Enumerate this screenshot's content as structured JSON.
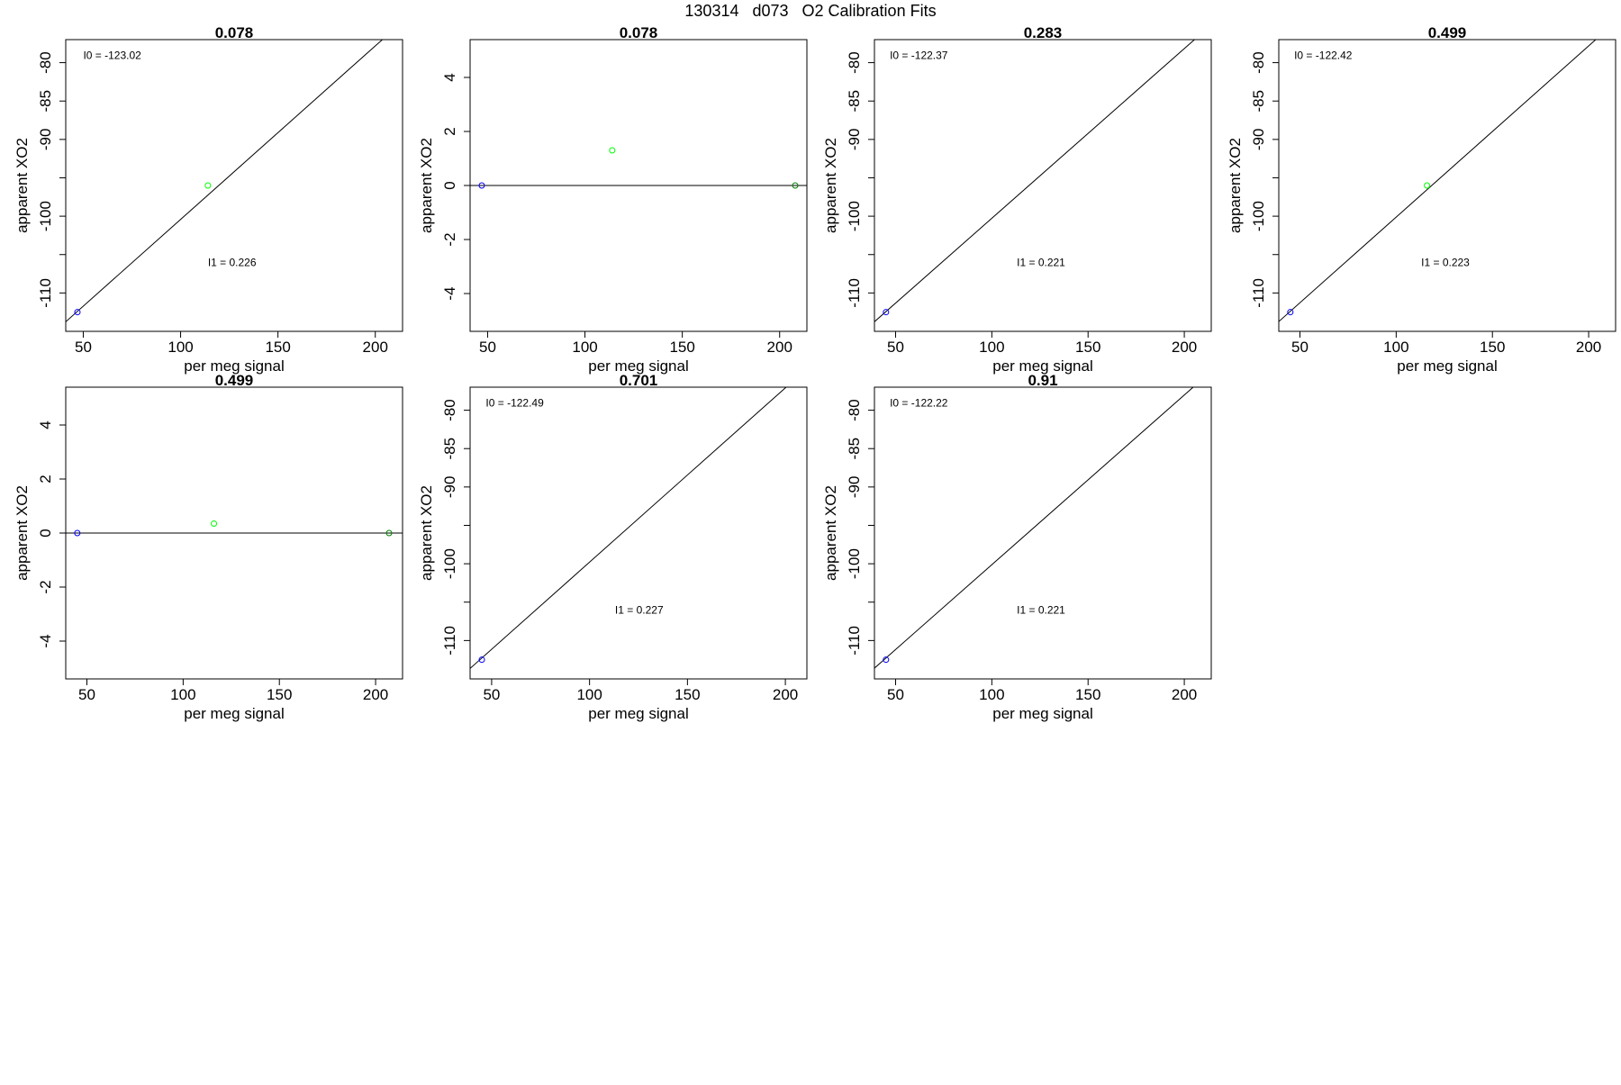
{
  "figure": {
    "title": "130314   d073   O2 Calibration Fits"
  },
  "chart_data": [
    {
      "type": "scatter",
      "title": "0.078",
      "xlabel": "per meg signal",
      "ylabel": "apparent XO2",
      "xlim": [
        41,
        214
      ],
      "ylim": [
        -115,
        -77
      ],
      "xticks": [
        50,
        100,
        150,
        200
      ],
      "yticks": [
        -110,
        -100,
        -90,
        -85,
        -80
      ],
      "ygrid_marks": [
        -110,
        -105,
        -100,
        -95,
        -90,
        -85,
        -80
      ],
      "points": [
        {
          "x": 47,
          "y": -112.5,
          "color": "#0000ff"
        },
        {
          "x": 114,
          "y": -96.0,
          "color": "#00ff00"
        },
        {
          "x": 208,
          "y": -76.5,
          "color": "#008000"
        }
      ],
      "fit_line": {
        "slope": 0.226,
        "intercept": -123.02
      },
      "annotations": [
        {
          "label": "I0 =",
          "value": "-123.02",
          "x": 50,
          "y": -79.5
        },
        {
          "label": "I1 =",
          "value": "0.226",
          "x": 114,
          "y": -106.5
        }
      ]
    },
    {
      "type": "scatter",
      "title": "0.078",
      "xlabel": "per meg signal",
      "ylabel": "apparent XO2",
      "xlim": [
        41,
        214
      ],
      "ylim": [
        -5.4,
        5.4
      ],
      "xticks": [
        50,
        100,
        150,
        200
      ],
      "yticks": [
        -4,
        -2,
        0,
        2,
        4
      ],
      "ygrid_marks": [],
      "points": [
        {
          "x": 47,
          "y": 0,
          "color": "#0000ff"
        },
        {
          "x": 114,
          "y": 1.3,
          "color": "#00ff00"
        },
        {
          "x": 208,
          "y": 0,
          "color": "#008000"
        }
      ],
      "fit_line": {
        "slope": 0,
        "intercept": 0
      },
      "annotations": []
    },
    {
      "type": "scatter",
      "title": "0.283",
      "xlabel": "per meg signal",
      "ylabel": "apparent XO2",
      "xlim": [
        39,
        214
      ],
      "ylim": [
        -115,
        -77
      ],
      "xticks": [
        50,
        100,
        150,
        200
      ],
      "yticks": [
        -110,
        -100,
        -90,
        -85,
        -80
      ],
      "ygrid_marks": [
        -110,
        -105,
        -100,
        -95,
        -90,
        -85,
        -80
      ],
      "points": [
        {
          "x": 45,
          "y": -112.5,
          "color": "#0000ff"
        },
        {
          "x": 207,
          "y": -76.5,
          "color": "#008000"
        }
      ],
      "fit_line": {
        "slope": 0.221,
        "intercept": -122.37
      },
      "annotations": [
        {
          "label": "I0 =",
          "value": "-122.37",
          "x": 47,
          "y": -79.5
        },
        {
          "label": "I1 =",
          "value": "0.221",
          "x": 113,
          "y": -106.5
        }
      ]
    },
    {
      "type": "scatter",
      "title": "0.499",
      "xlabel": "per meg signal",
      "ylabel": "apparent XO2",
      "xlim": [
        39,
        214
      ],
      "ylim": [
        -115,
        -77
      ],
      "xticks": [
        50,
        100,
        150,
        200
      ],
      "yticks": [
        -110,
        -100,
        -90,
        -85,
        -80
      ],
      "ygrid_marks": [
        -110,
        -105,
        -100,
        -95,
        -90,
        -85,
        -80
      ],
      "points": [
        {
          "x": 45,
          "y": -112.5,
          "color": "#0000ff"
        },
        {
          "x": 116,
          "y": -96.0,
          "color": "#00ff00"
        },
        {
          "x": 207,
          "y": -76.5,
          "color": "#008000"
        }
      ],
      "fit_line": {
        "slope": 0.223,
        "intercept": -122.42
      },
      "annotations": [
        {
          "label": "I0 =",
          "value": "-122.42",
          "x": 47,
          "y": -79.5
        },
        {
          "label": "I1 =",
          "value": "0.223",
          "x": 113,
          "y": -106.5
        }
      ]
    },
    {
      "type": "scatter",
      "title": "0.499",
      "xlabel": "per meg signal",
      "ylabel": "apparent XO2",
      "xlim": [
        39,
        214
      ],
      "ylim": [
        -5.4,
        5.4
      ],
      "xticks": [
        50,
        100,
        150,
        200
      ],
      "yticks": [
        -4,
        -2,
        0,
        2,
        4
      ],
      "ygrid_marks": [],
      "points": [
        {
          "x": 45,
          "y": 0,
          "color": "#0000ff"
        },
        {
          "x": 116,
          "y": 0.35,
          "color": "#00ff00"
        },
        {
          "x": 207,
          "y": 0,
          "color": "#008000"
        }
      ],
      "fit_line": {
        "slope": 0,
        "intercept": 0
      },
      "annotations": []
    },
    {
      "type": "scatter",
      "title": "0.701",
      "xlabel": "per meg signal",
      "ylabel": "apparent XO2",
      "xlim": [
        39,
        211
      ],
      "ylim": [
        -115,
        -77
      ],
      "xticks": [
        50,
        100,
        150,
        200
      ],
      "yticks": [
        -110,
        -100,
        -90,
        -85,
        -80
      ],
      "ygrid_marks": [
        -110,
        -105,
        -100,
        -95,
        -90,
        -85,
        -80
      ],
      "points": [
        {
          "x": 45,
          "y": -112.5,
          "color": "#0000ff"
        },
        {
          "x": 203,
          "y": -76.5,
          "color": "#008000"
        }
      ],
      "fit_line": {
        "slope": 0.227,
        "intercept": -122.49
      },
      "annotations": [
        {
          "label": "I0 =",
          "value": "-122.49",
          "x": 47,
          "y": -79.5
        },
        {
          "label": "I1 =",
          "value": "0.227",
          "x": 113,
          "y": -106.5
        }
      ]
    },
    {
      "type": "scatter",
      "title": "0.91",
      "xlabel": "per meg signal",
      "ylabel": "apparent XO2",
      "xlim": [
        39,
        214
      ],
      "ylim": [
        -115,
        -77
      ],
      "xticks": [
        50,
        100,
        150,
        200
      ],
      "yticks": [
        -110,
        -100,
        -90,
        -85,
        -80
      ],
      "ygrid_marks": [
        -110,
        -105,
        -100,
        -95,
        -90,
        -85,
        -80
      ],
      "points": [
        {
          "x": 45,
          "y": -112.5,
          "color": "#0000ff"
        },
        {
          "x": 207,
          "y": -76.5,
          "color": "#008000"
        }
      ],
      "fit_line": {
        "slope": 0.221,
        "intercept": -122.22
      },
      "annotations": [
        {
          "label": "I0 =",
          "value": "-122.22",
          "x": 47,
          "y": -79.5
        },
        {
          "label": "I1 =",
          "value": "0.221",
          "x": 113,
          "y": -106.5
        }
      ]
    }
  ]
}
